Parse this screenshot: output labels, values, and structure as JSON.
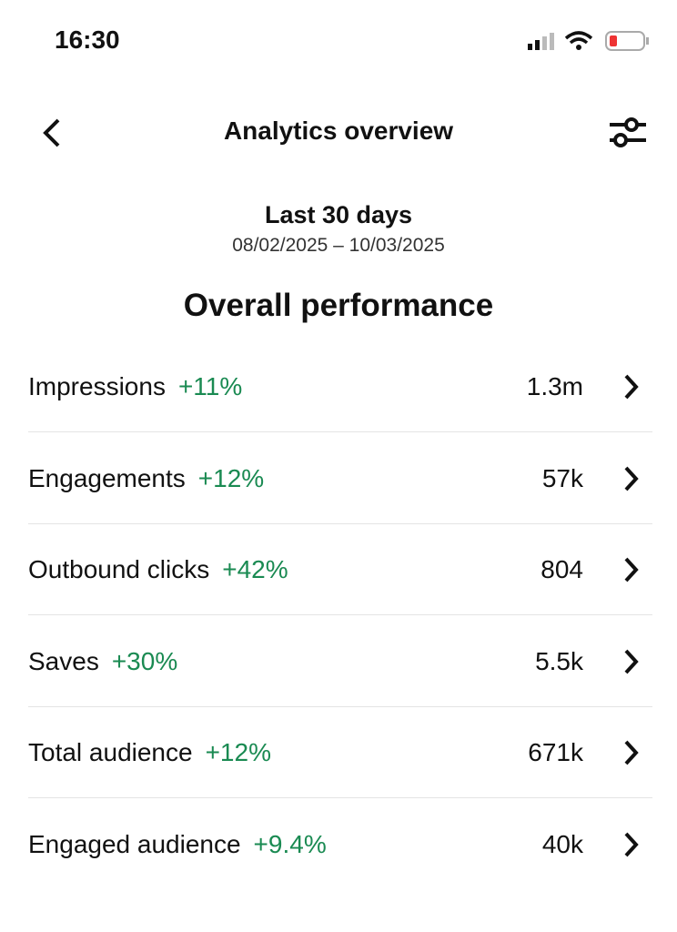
{
  "status_bar": {
    "time": "16:30"
  },
  "header": {
    "title": "Analytics overview"
  },
  "period": {
    "label": "Last 30 days",
    "range": "08/02/2025 – 10/03/2025"
  },
  "section_title": "Overall performance",
  "metrics": [
    {
      "name": "Impressions",
      "change": "+11%",
      "value": "1.3m"
    },
    {
      "name": "Engagements",
      "change": "+12%",
      "value": "57k"
    },
    {
      "name": "Outbound clicks",
      "change": "+42%",
      "value": "804"
    },
    {
      "name": "Saves",
      "change": "+30%",
      "value": "5.5k"
    },
    {
      "name": "Total audience",
      "change": "+12%",
      "value": "671k"
    },
    {
      "name": "Engaged audience",
      "change": "+9.4%",
      "value": "40k"
    }
  ]
}
